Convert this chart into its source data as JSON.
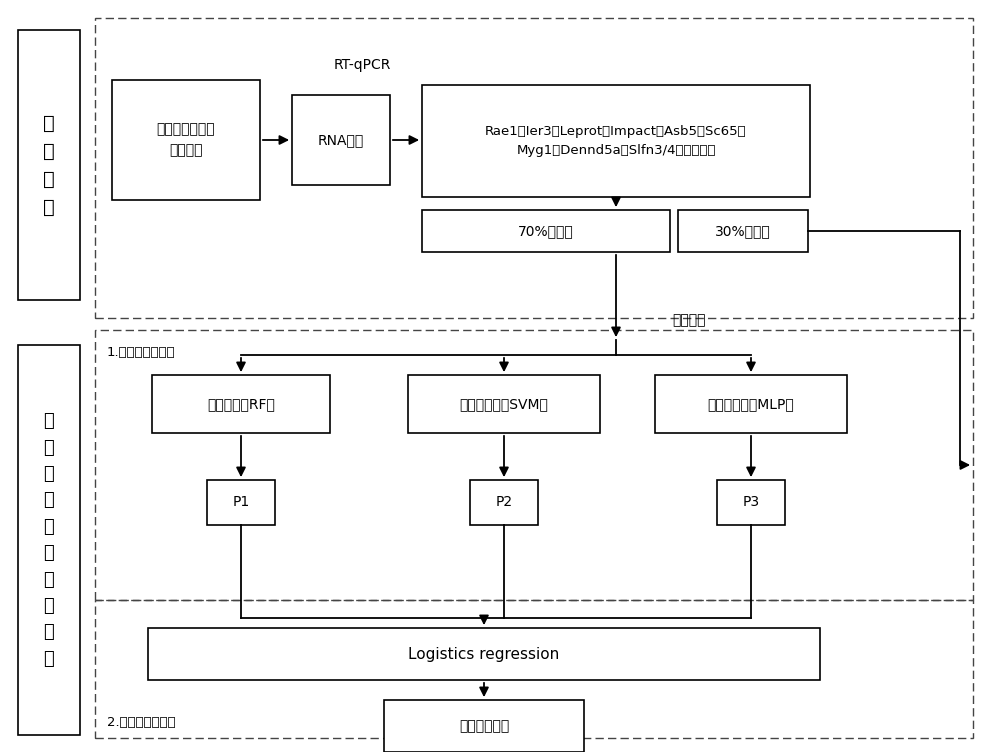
{
  "bg_color": "#ffffff",
  "figsize": [
    10.0,
    7.52
  ],
  "dpi": 100,
  "left_label_top": "数\n据\n获\n取",
  "left_label_bottom": "损\n伤\n时\n间\n集\n成\n预\n测\n模\n型",
  "rt_qpcr_label": "RT-qPCR",
  "grid_search_label": "网格寻参",
  "layer1_label": "1.第一层预测模型",
  "layer2_label": "2.第二层预测模型",
  "box1_text": "不同损伤时间大\n鼠骨骼肌",
  "box2_text": "RNA提取",
  "box3_text": "Rae1、Ier3、Leprot、Impact、Asb5、Sc65、\nMyg1、Dennd5a和Slfn3/4表达量变化",
  "box4_text": "70%训练集",
  "box5_text": "30%测试集",
  "box_rf_text": "随机森林（RF）",
  "box_svm_text": "支持向量机（SVM）",
  "box_mlp_text": "多层感知机（MLP）",
  "box_p1_text": "P1",
  "box_p2_text": "P2",
  "box_p3_text": "P3",
  "box_lr_text": "Logistics regression",
  "box_final_text": "最终预测结果"
}
